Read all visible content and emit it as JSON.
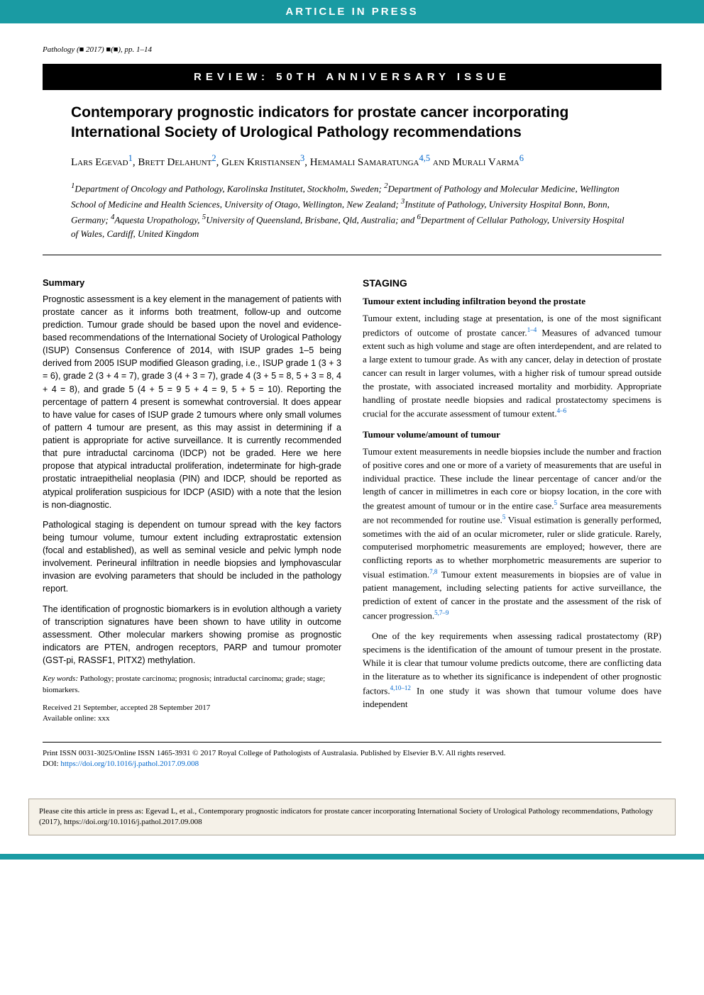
{
  "banner": {
    "article_in_press": "ARTICLE IN PRESS",
    "review_banner": "REVIEW: 50TH ANNIVERSARY ISSUE"
  },
  "journal_ref": "Pathology (■ 2017) ■(■), pp. 1–14",
  "title": "Contemporary prognostic indicators for prostate cancer incorporating International Society of Urological Pathology recommendations",
  "authors_html": "Lars Egevad<sup>1</sup>, Brett Delahunt<sup>2</sup>, Glen Kristiansen<sup>3</sup>, Hemamali Samaratunga<sup>4,5</sup> and Murali Varma<sup>6</sup>",
  "affiliations_html": "<sup>1</sup>Department of Oncology and Pathology, Karolinska Institutet, Stockholm, Sweden; <sup>2</sup>Department of Pathology and Molecular Medicine, Wellington School of Medicine and Health Sciences, University of Otago, Wellington, New Zealand; <sup>3</sup>Institute of Pathology, University Hospital Bonn, Bonn, Germany; <sup>4</sup>Aquesta Uropathology, <sup>5</sup>University of Queensland, Brisbane, Qld, Australia; and <sup>6</sup>Department of Cellular Pathology, University Hospital of Wales, Cardiff, United Kingdom",
  "summary": {
    "heading": "Summary",
    "para1": "Prognostic assessment is a key element in the management of patients with prostate cancer as it informs both treatment, follow-up and outcome prediction. Tumour grade should be based upon the novel and evidence-based recommendations of the International Society of Urological Pathology (ISUP) Consensus Conference of 2014, with ISUP grades 1–5 being derived from 2005 ISUP modified Gleason grading, i.e., ISUP grade 1 (3 + 3 = 6), grade 2 (3 + 4 = 7), grade 3 (4 + 3 = 7), grade 4 (3 + 5 = 8, 5 + 3 = 8, 4 + 4 = 8), and grade 5 (4 + 5 = 9 5 + 4 = 9, 5 + 5 = 10). Reporting the percentage of pattern 4 present is somewhat controversial. It does appear to have value for cases of ISUP grade 2 tumours where only small volumes of pattern 4 tumour are present, as this may assist in determining if a patient is appropriate for active surveillance. It is currently recommended that pure intraductal carcinoma (IDCP) not be graded. Here we here propose that atypical intraductal proliferation, indeterminate for high-grade prostatic intraepithelial neoplasia (PIN) and IDCP, should be reported as atypical proliferation suspicious for IDCP (ASID) with a note that the lesion is non-diagnostic.",
    "para2": "Pathological staging is dependent on tumour spread with the key factors being tumour volume, tumour extent including extraprostatic extension (focal and established), as well as seminal vesicle and pelvic lymph node involvement. Perineural infiltration in needle biopsies and lymphovascular invasion are evolving parameters that should be included in the pathology report.",
    "para3": "The identification of prognostic biomarkers is in evolution although a variety of transcription signatures have been shown to have utility in outcome assessment. Other molecular markers showing promise as prognostic indicators are PTEN, androgen receptors, PARP and tumour promoter (GST-pi, RASSF1, PITX2) methylation."
  },
  "keywords": {
    "label": "Key words:",
    "text": "Pathology; prostate carcinoma; prognosis; intraductal carcinoma; grade; stage; biomarkers."
  },
  "dates": {
    "received": "Received 21 September, accepted 28 September 2017",
    "available": "Available online: xxx"
  },
  "staging": {
    "heading": "STAGING",
    "sub1": {
      "heading": "Tumour extent including infiltration beyond the prostate",
      "para_html": "Tumour extent, including stage at presentation, is one of the most significant predictors of outcome of prostate cancer.<sup>1–4</sup> Measures of advanced tumour extent such as high volume and stage are often interdependent, and are related to a large extent to tumour grade. As with any cancer, delay in detection of prostate cancer can result in larger volumes, with a higher risk of tumour spread outside the prostate, with associated increased mortality and morbidity. Appropriate handling of prostate needle biopsies and radical prostatectomy specimens is crucial for the accurate assessment of tumour extent.<sup>4–6</sup>"
    },
    "sub2": {
      "heading": "Tumour volume/amount of tumour",
      "para1_html": "Tumour extent measurements in needle biopsies include the number and fraction of positive cores and one or more of a variety of measurements that are useful in individual practice. These include the linear percentage of cancer and/or the length of cancer in millimetres in each core or biopsy location, in the core with the greatest amount of tumour or in the entire case.<sup>5</sup> Surface area measurements are not recommended for routine use.<sup>5</sup> Visual estimation is generally performed, sometimes with the aid of an ocular micrometer, ruler or slide graticule. Rarely, computerised morphometric measurements are employed; however, there are conflicting reports as to whether morphometric measurements are superior to visual estimation.<sup>7,8</sup> Tumour extent measurements in biopsies are of value in patient management, including selecting patients for active surveillance, the prediction of extent of cancer in the prostate and the assessment of the risk of cancer progression.<sup>5,7–9</sup>",
      "para2_html": "One of the key requirements when assessing radical prostatectomy (RP) specimens is the identification of the amount of tumour present in the prostate. While it is clear that tumour volume predicts outcome, there are conflicting data in the literature as to whether its significance is independent of other prognostic factors.<sup>4,10–12</sup> In one study it was shown that tumour volume does have independent"
    }
  },
  "footer": {
    "issn": "Print ISSN 0031-3025/Online ISSN 1465-3931  © 2017 Royal College of Pathologists of Australasia. Published by Elsevier B.V. All rights reserved.",
    "doi_label": "DOI: ",
    "doi": "https://doi.org/10.1016/j.pathol.2017.09.008"
  },
  "citation_box": "Please cite this article in press as: Egevad L, et al., Contemporary prognostic indicators for prostate cancer incorporating International Society of Urological Pathology recommendations, Pathology (2017), https://doi.org/10.1016/j.pathol.2017.09.008",
  "colors": {
    "teal": "#1a9ba3",
    "link_blue": "#0066cc",
    "box_bg": "#f5f1e8",
    "box_border": "#b0a89a"
  }
}
